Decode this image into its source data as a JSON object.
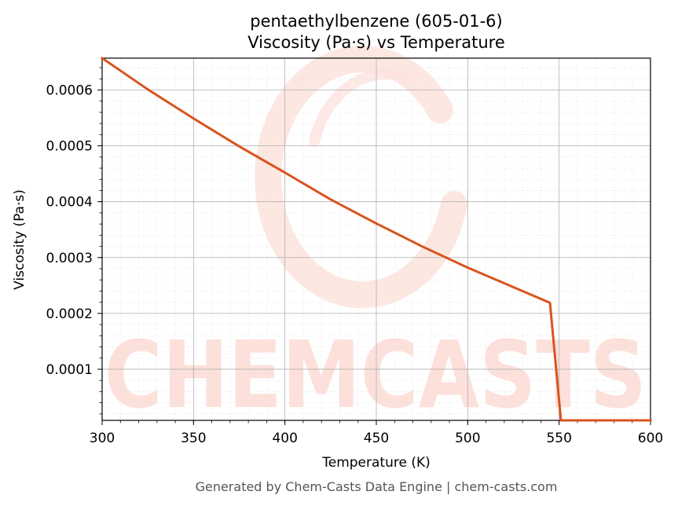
{
  "chart_data": {
    "type": "line",
    "title": "pentaethylbenzene (605-01-6)",
    "subtitle": "Viscosity (Pa·s) vs Temperature",
    "xlabel": "Temperature (K)",
    "ylabel": "Viscosity (Pa·s)",
    "xlim": [
      300,
      600
    ],
    "ylim": [
      8.5e-06,
      0.000657
    ],
    "x_ticks": [
      300,
      350,
      400,
      450,
      500,
      550,
      600
    ],
    "x_tick_labels": [
      "300",
      "350",
      "400",
      "450",
      "500",
      "550",
      "600"
    ],
    "y_ticks": [
      0.0001,
      0.0002,
      0.0003,
      0.0004,
      0.0005,
      0.0006
    ],
    "y_tick_labels": [
      "0.0001",
      "0.0002",
      "0.0003",
      "0.0004",
      "0.0005",
      "0.0006"
    ],
    "grid": true,
    "series": [
      {
        "color": "#d9541e",
        "x": [
          300,
          325,
          350,
          375,
          400,
          425,
          450,
          475,
          500,
          525,
          545,
          551,
          575,
          600
        ],
        "y": [
          0.000657,
          0.000601,
          0.000549,
          0.000499,
          0.000452,
          0.000404,
          0.000361,
          0.00032,
          0.000282,
          0.000247,
          0.000219,
          8.5e-06,
          8.5e-06,
          8.5e-06
        ]
      }
    ]
  },
  "watermark": {
    "text": "CHEMCASTS",
    "color": "#fde0da"
  },
  "footer": {
    "text": "Generated by Chem-Casts Data Engine | chem-casts.com"
  }
}
